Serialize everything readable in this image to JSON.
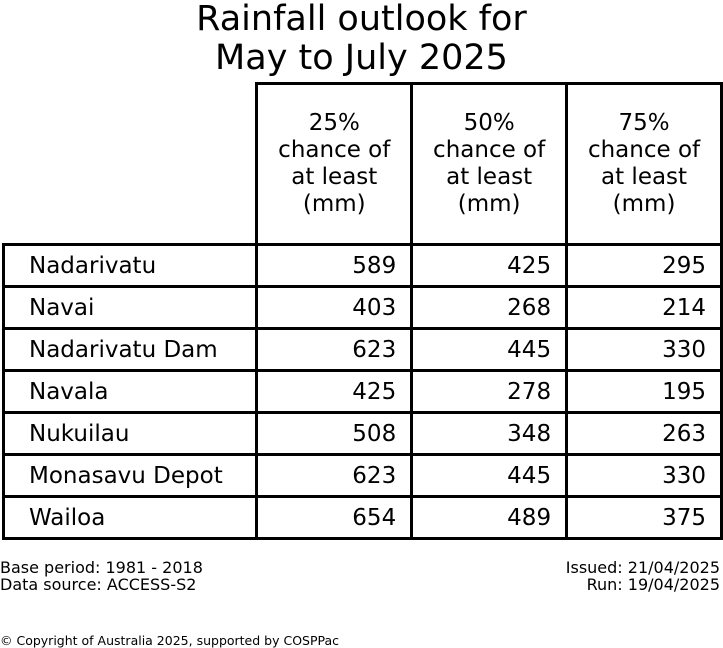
{
  "chart_data": {
    "type": "table",
    "title": [
      "Rainfall outlook for",
      "May to July 2025"
    ],
    "columns": [
      [
        "25%",
        "chance of",
        "at least",
        "(mm)"
      ],
      [
        "50%",
        "chance of",
        "at least",
        "(mm)"
      ],
      [
        "75%",
        "chance of",
        "at least",
        "(mm)"
      ]
    ],
    "rows": [
      {
        "name": "Nadarivatu",
        "values": [
          "589",
          "425",
          "295"
        ]
      },
      {
        "name": "Navai",
        "values": [
          "403",
          "268",
          "214"
        ]
      },
      {
        "name": "Nadarivatu Dam",
        "values": [
          "623",
          "445",
          "330"
        ]
      },
      {
        "name": "Navala",
        "values": [
          "425",
          "278",
          "195"
        ]
      },
      {
        "name": "Nukuilau",
        "values": [
          "508",
          "348",
          "263"
        ]
      },
      {
        "name": "Monasavu Depot",
        "values": [
          "623",
          "445",
          "330"
        ]
      },
      {
        "name": "Wailoa",
        "values": [
          "654",
          "489",
          "375"
        ]
      }
    ]
  },
  "footer": {
    "base_period": "Base period: 1981 - 2018",
    "data_source": "Data source: ACCESS-S2",
    "issued": "Issued: 21/04/2025",
    "run": "Run: 19/04/2025",
    "copyright": "© Copyright of Australia 2025, supported by COSPPac"
  }
}
